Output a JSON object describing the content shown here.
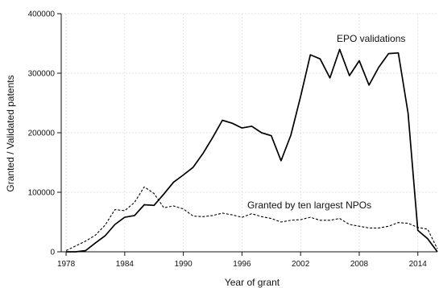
{
  "chart_data": {
    "type": "line",
    "xlabel": "Year of grant",
    "ylabel": "Granted / Validated patents",
    "xlim": [
      1977.5,
      2016
    ],
    "ylim": [
      0,
      400000
    ],
    "xticks": [
      1978,
      1984,
      1990,
      1996,
      2002,
      2008,
      2014
    ],
    "yticks": [
      0,
      100000,
      200000,
      300000,
      400000
    ],
    "xtick_labels": [
      "1978",
      "1984",
      "1990",
      "1996",
      "2002",
      "2008",
      "2014"
    ],
    "ytick_labels": [
      "0",
      "100000",
      "200000",
      "300000",
      "400000"
    ],
    "grid": true,
    "series": [
      {
        "name": "EPO validations",
        "style": "solid",
        "color": "#000000",
        "x": [
          1978,
          1979,
          1980,
          1981,
          1982,
          1983,
          1984,
          1985,
          1986,
          1987,
          1988,
          1989,
          1990,
          1991,
          1992,
          1993,
          1994,
          1995,
          1996,
          1997,
          1998,
          1999,
          2000,
          2001,
          2002,
          2003,
          2004,
          2005,
          2006,
          2007,
          2008,
          2009,
          2010,
          2011,
          2012,
          2013,
          2014,
          2015,
          2016
        ],
        "values": [
          0,
          0,
          2000,
          15000,
          27000,
          46000,
          58000,
          61000,
          79000,
          78000,
          97000,
          117000,
          129000,
          142000,
          165000,
          192000,
          221000,
          216000,
          208000,
          211000,
          200000,
          195000,
          153000,
          196000,
          261000,
          331000,
          324000,
          292000,
          340000,
          296000,
          321000,
          280000,
          310000,
          333000,
          334000,
          233000,
          36000,
          22000,
          0
        ]
      },
      {
        "name": "Granted by ten largest NPOs",
        "style": "dashed",
        "color": "#000000",
        "x": [
          1978,
          1979,
          1980,
          1981,
          1982,
          1983,
          1984,
          1985,
          1986,
          1987,
          1988,
          1989,
          1990,
          1991,
          1992,
          1993,
          1994,
          1995,
          1996,
          1997,
          1998,
          1999,
          2000,
          2001,
          2002,
          2003,
          2004,
          2005,
          2006,
          2007,
          2008,
          2009,
          2010,
          2011,
          2012,
          2013,
          2014,
          2015,
          2016
        ],
        "values": [
          2000,
          10000,
          18000,
          28000,
          45000,
          71000,
          69000,
          83000,
          109000,
          98000,
          74000,
          77000,
          72000,
          60000,
          59000,
          61000,
          65000,
          62000,
          58000,
          64000,
          59000,
          56000,
          50000,
          53000,
          54000,
          58000,
          53000,
          53000,
          56000,
          46000,
          43000,
          40000,
          40000,
          43000,
          49000,
          48000,
          41000,
          38000,
          5000
        ]
      }
    ]
  }
}
